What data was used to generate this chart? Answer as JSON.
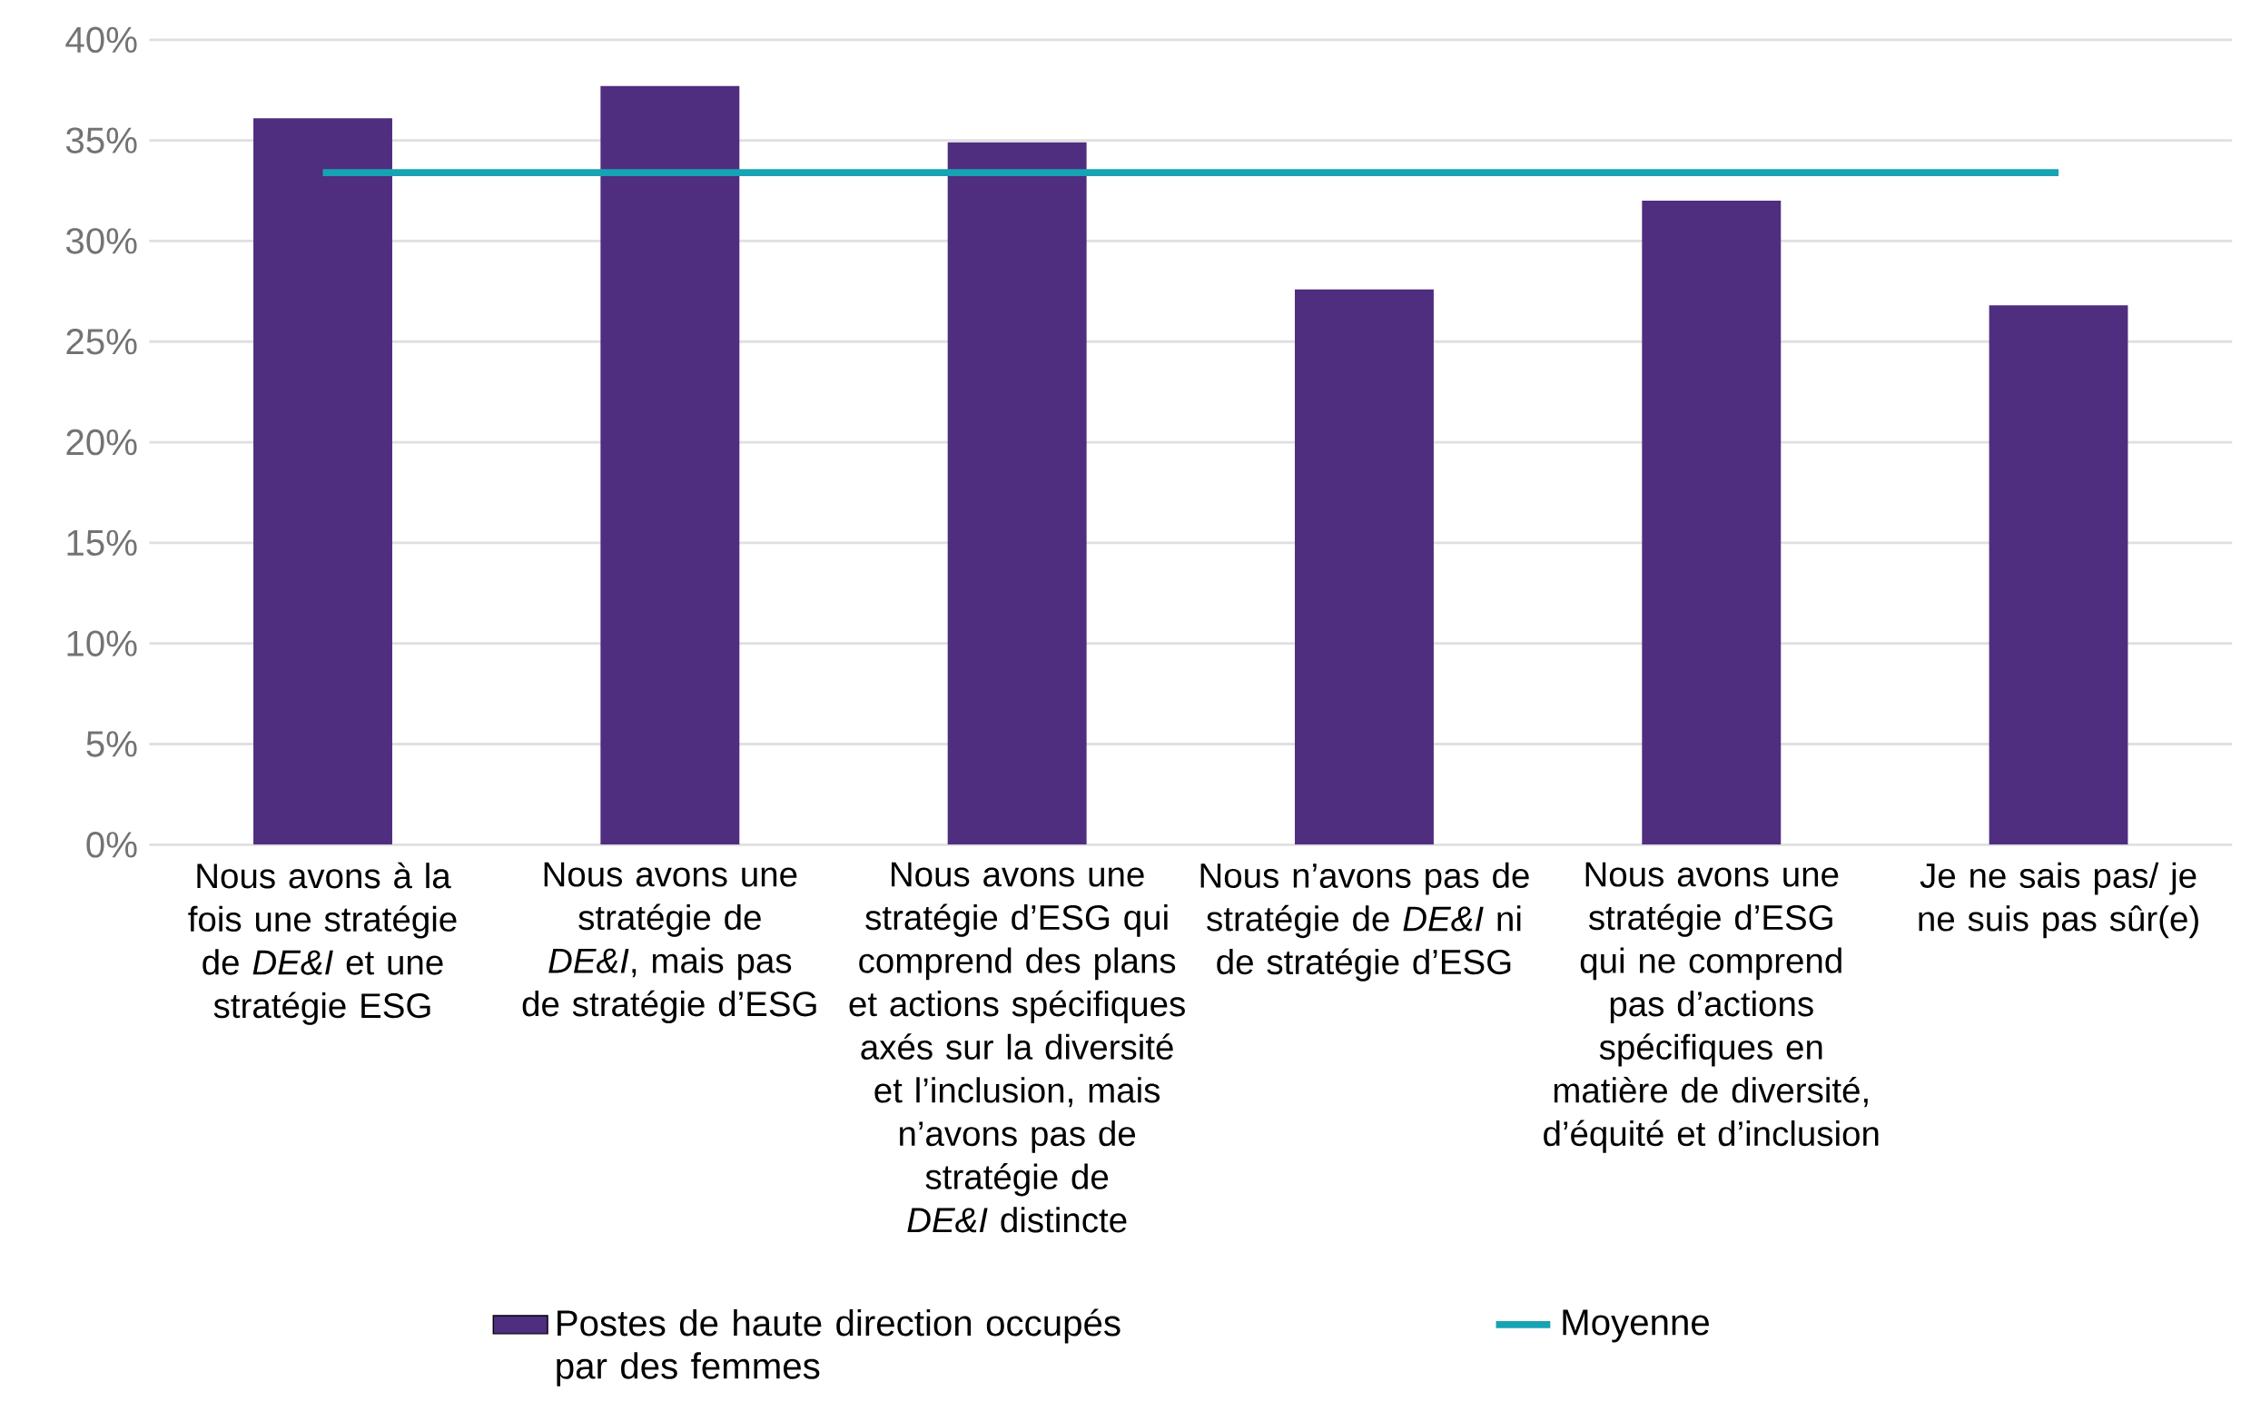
{
  "chart_data": {
    "type": "bar",
    "categories": [
      "Nous avons à la fois une stratégie de *DE&I* et une stratégie ESG",
      "Nous avons une stratégie de *DE&I*, mais pas de stratégie d’ESG",
      "Nous avons une stratégie d’ESG qui comprend des plans et actions spécifiques axés sur la diversité et l’inclusion, mais n’avons pas de stratégie de *DE&I* distincte",
      "Nous n’avons pas de stratégie de *DE&I* ni de stratégie d’ESG",
      "Nous avons une stratégie d’ESG qui ne comprend pas d’actions spécifiques en matière de diversité, d’équité et d’inclusion",
      "Je ne sais pas/ je ne suis pas sûr(e)"
    ],
    "series": [
      {
        "name": "Postes de haute direction occupés par des femmes",
        "color": "#4f2d7f",
        "values": [
          36.1,
          37.7,
          34.9,
          27.6,
          32.0,
          26.8
        ]
      },
      {
        "type": "line",
        "name": "Moyenne",
        "color": "#17a3b4",
        "values": [
          33.4,
          33.4,
          33.4,
          33.4,
          33.4,
          33.4
        ]
      }
    ],
    "ylim": [
      0,
      40
    ],
    "yticks": [
      {
        "value": 0,
        "label": "0%"
      },
      {
        "value": 5,
        "label": "5%"
      },
      {
        "value": 10,
        "label": "10%"
      },
      {
        "value": 15,
        "label": "15%"
      },
      {
        "value": 20,
        "label": "20%"
      },
      {
        "value": 25,
        "label": "25%"
      },
      {
        "value": 30,
        "label": "30%"
      },
      {
        "value": 35,
        "label": "35%"
      },
      {
        "value": 40,
        "label": "40%"
      }
    ],
    "grid": "y",
    "legend": "bottom"
  }
}
